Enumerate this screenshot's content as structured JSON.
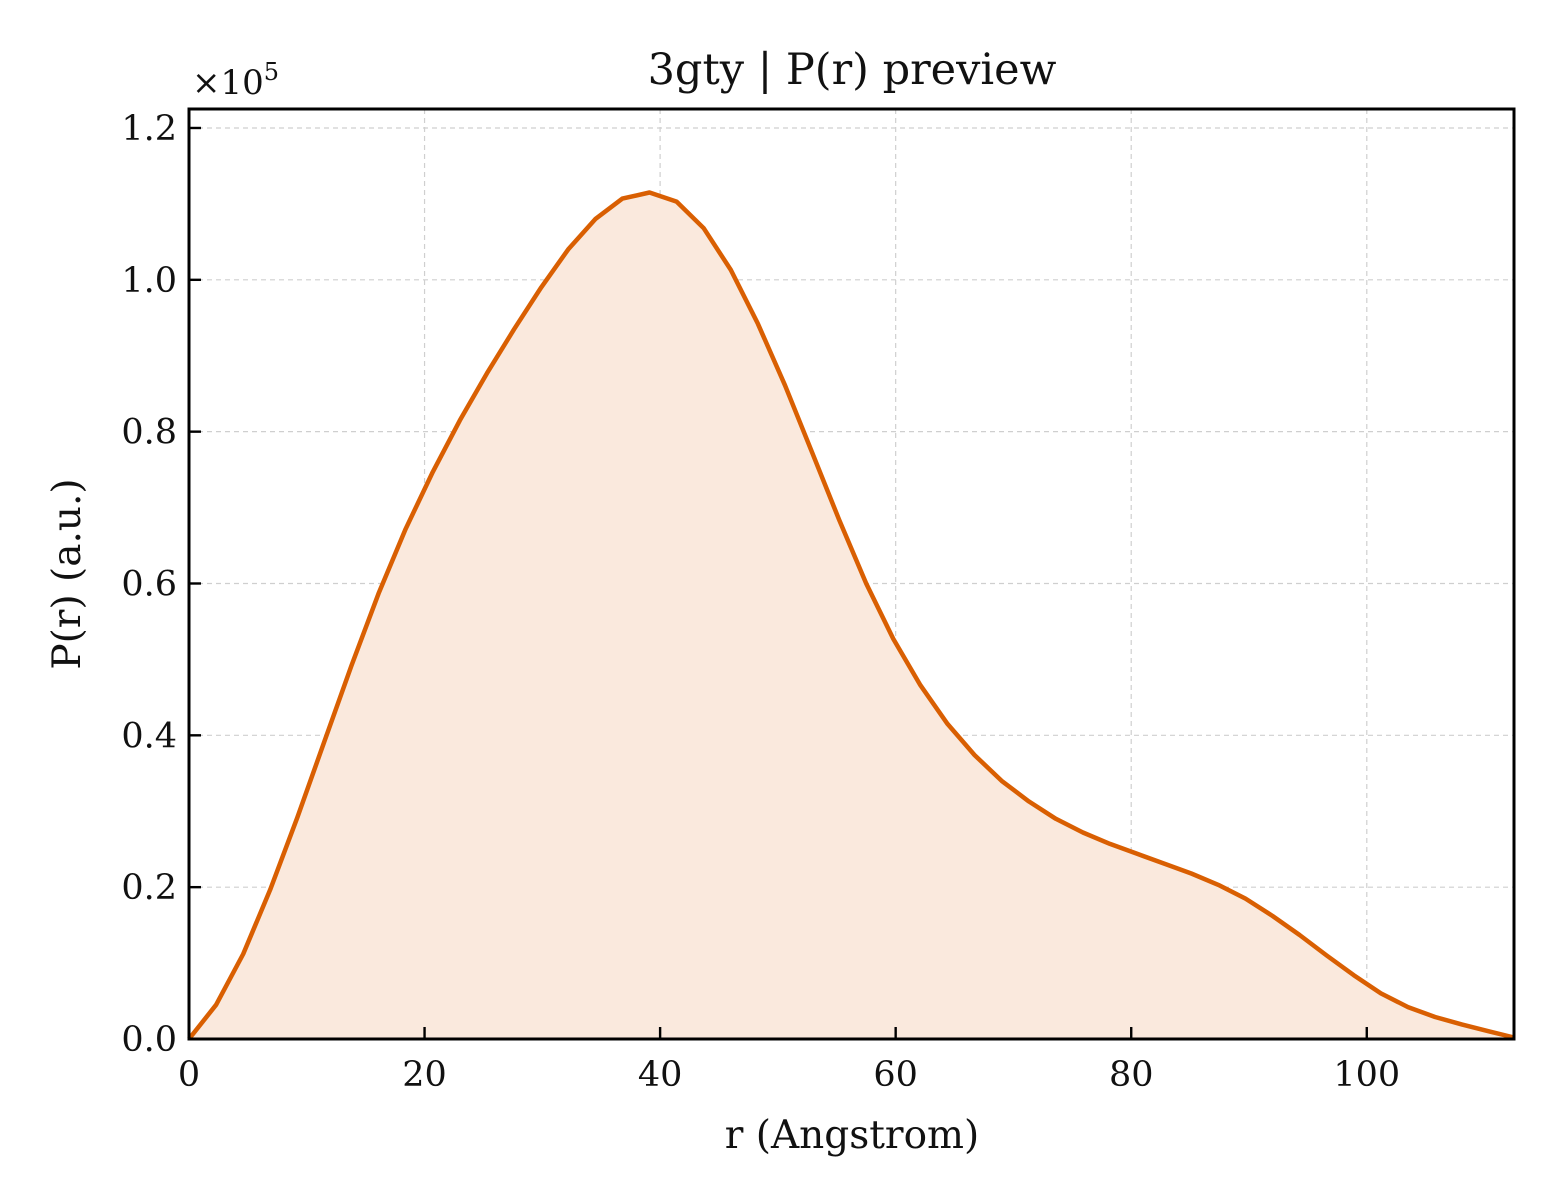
{
  "chart_data": {
    "type": "area",
    "title": "3gty | P(r) preview",
    "xlabel": "r (Angstrom)",
    "ylabel": "P(r) (a.u.)",
    "y_multiplier_base": "×10",
    "y_multiplier_exp": "5",
    "xlim": [
      0,
      112.5
    ],
    "ylim": [
      0,
      1.225
    ],
    "xticks": [
      0,
      20,
      40,
      60,
      80,
      100
    ],
    "xtick_labels": [
      "0",
      "20",
      "40",
      "60",
      "80",
      "100"
    ],
    "yticks": [
      0.0,
      0.2,
      0.4,
      0.6,
      0.8,
      1.0,
      1.2
    ],
    "ytick_labels": [
      "0.0",
      "0.2",
      "0.4",
      "0.6",
      "0.8",
      "1.0",
      "1.2"
    ],
    "grid": true,
    "line_color": "#d95f02",
    "fill_color": "#fae9dd",
    "series": [
      {
        "x": [
          0,
          2.3,
          4.6,
          6.9,
          9.2,
          11.5,
          13.8,
          16.1,
          18.4,
          20.7,
          23.0,
          25.3,
          27.6,
          29.9,
          32.2,
          34.5,
          36.8,
          39.1,
          41.4,
          43.7,
          46.0,
          48.3,
          50.6,
          52.9,
          55.2,
          57.5,
          59.8,
          62.1,
          64.4,
          66.7,
          69.0,
          71.3,
          73.6,
          75.9,
          78.2,
          80.5,
          82.8,
          85.1,
          87.4,
          89.7,
          92.0,
          94.3,
          96.6,
          98.9,
          101.2,
          103.5,
          105.8,
          108.1,
          110.4,
          112.5
        ],
        "y": [
          0.0,
          0.045,
          0.112,
          0.197,
          0.292,
          0.392,
          0.492,
          0.587,
          0.672,
          0.747,
          0.815,
          0.877,
          0.935,
          0.99,
          1.04,
          1.08,
          1.107,
          1.115,
          1.103,
          1.068,
          1.013,
          0.942,
          0.861,
          0.773,
          0.684,
          0.6,
          0.527,
          0.466,
          0.415,
          0.374,
          0.34,
          0.313,
          0.29,
          0.272,
          0.257,
          0.244,
          0.231,
          0.218,
          0.203,
          0.185,
          0.162,
          0.137,
          0.11,
          0.084,
          0.06,
          0.042,
          0.029,
          0.019,
          0.01,
          0.002
        ]
      }
    ]
  }
}
